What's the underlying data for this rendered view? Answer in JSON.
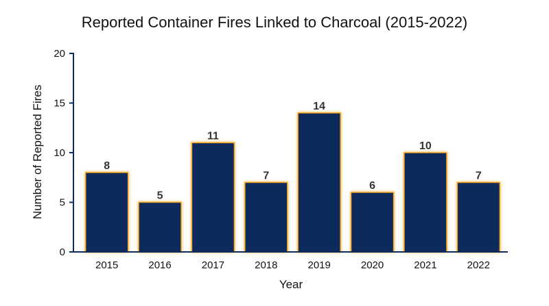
{
  "chart_data": {
    "type": "bar",
    "title": "Reported Container Fires Linked to Charcoal (2015-2022)",
    "xlabel": "Year",
    "ylabel": "Number of Reported Fires",
    "categories": [
      "2015",
      "2016",
      "2017",
      "2018",
      "2019",
      "2020",
      "2021",
      "2022"
    ],
    "values": [
      8,
      5,
      11,
      7,
      14,
      6,
      10,
      7
    ],
    "ylim": [
      0,
      20
    ],
    "yticks": [
      0,
      5,
      10,
      15,
      20
    ],
    "grid": false,
    "colors": {
      "bar": "#0f2b5c",
      "edge_glow": "#f5a623"
    }
  }
}
